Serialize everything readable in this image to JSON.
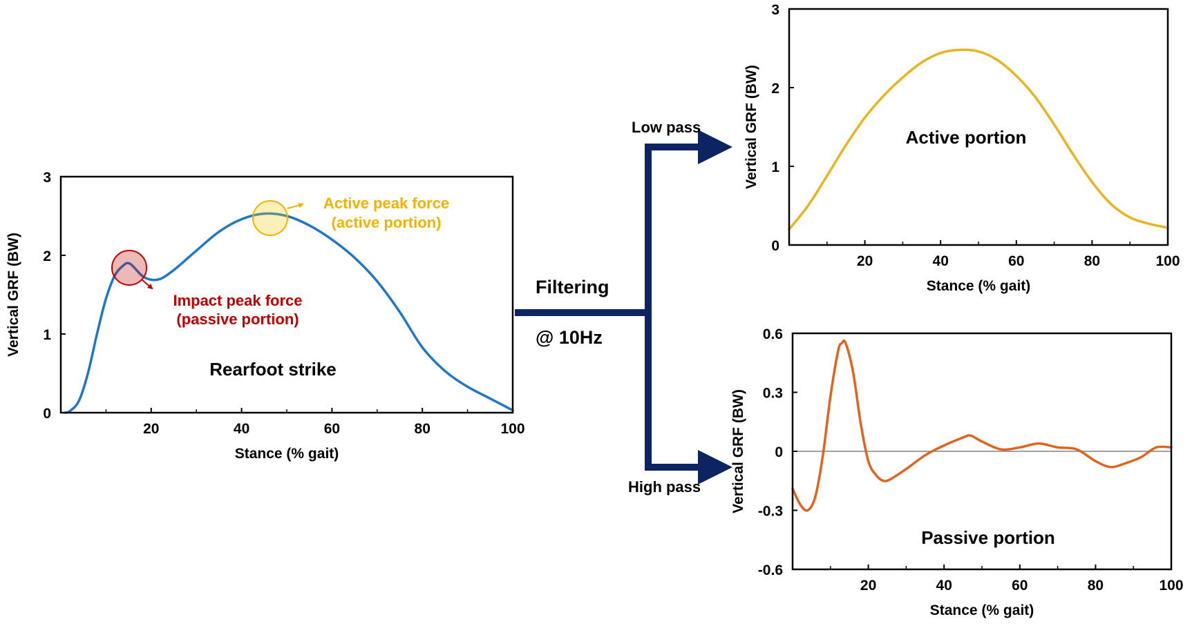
{
  "colors": {
    "raw_line": "#1f77c8",
    "active_line": "#e8b422",
    "passive_line": "#de6420",
    "arrows": "#0c2462",
    "impact_marker": "#c00000",
    "active_marker": "#f0b400",
    "zero_line": "#808080"
  },
  "flow": {
    "filtering_label": "Filtering",
    "frequency_label": "@ 10Hz",
    "low_pass_label": "Low pass",
    "high_pass_label": "High pass"
  },
  "annotations": {
    "active_peak_line1": "Active peak force",
    "active_peak_line2": "(active portion)",
    "impact_peak_line1": "Impact peak force",
    "impact_peak_line2": "(passive portion)"
  },
  "chart_data": [
    {
      "id": "raw",
      "type": "line",
      "title": "Rearfoot strike",
      "xlabel": "Stance (% gait)",
      "ylabel": "Vertical GRF (BW)",
      "xlim": [
        0,
        100
      ],
      "ylim": [
        0,
        3
      ],
      "xticks": [
        20,
        40,
        60,
        80,
        100
      ],
      "yticks": [
        0,
        1,
        2,
        3
      ],
      "grid": false,
      "series": [
        {
          "color": "#1f77c8",
          "x": [
            1,
            2,
            4,
            6,
            8,
            10,
            12,
            14,
            15,
            16,
            18,
            20,
            22,
            24,
            26,
            28,
            30,
            35,
            40,
            45,
            50,
            55,
            60,
            65,
            70,
            75,
            80,
            85,
            90,
            95,
            100
          ],
          "y": [
            0.0,
            0.02,
            0.15,
            0.5,
            1.0,
            1.45,
            1.75,
            1.88,
            1.9,
            1.86,
            1.74,
            1.69,
            1.7,
            1.77,
            1.86,
            1.96,
            2.06,
            2.3,
            2.46,
            2.53,
            2.5,
            2.38,
            2.2,
            1.97,
            1.67,
            1.28,
            0.83,
            0.53,
            0.33,
            0.18,
            0.03
          ]
        }
      ]
    },
    {
      "id": "active",
      "type": "line",
      "title": "Active portion",
      "xlabel": "Stance (% gait)",
      "ylabel": "Vertical GRF (BW)",
      "xlim": [
        0,
        100
      ],
      "ylim": [
        0,
        3
      ],
      "xticks": [
        20,
        40,
        60,
        80,
        100
      ],
      "yticks": [
        0,
        1,
        2,
        3
      ],
      "grid": false,
      "series": [
        {
          "color": "#e8b422",
          "x": [
            0,
            5,
            10,
            15,
            20,
            25,
            30,
            35,
            40,
            45,
            50,
            55,
            60,
            65,
            70,
            75,
            80,
            85,
            90,
            95,
            100
          ],
          "y": [
            0.2,
            0.5,
            0.88,
            1.27,
            1.62,
            1.9,
            2.13,
            2.32,
            2.44,
            2.48,
            2.46,
            2.35,
            2.15,
            1.88,
            1.53,
            1.15,
            0.8,
            0.52,
            0.35,
            0.27,
            0.22
          ]
        }
      ]
    },
    {
      "id": "passive",
      "type": "line",
      "title": "Passive portion",
      "xlabel": "Stance (% gait)",
      "ylabel": "Vertical GRF (BW)",
      "xlim": [
        0,
        100
      ],
      "ylim": [
        -0.6,
        0.6
      ],
      "xticks": [
        20,
        40,
        60,
        80,
        100
      ],
      "yticks": [
        -0.6,
        -0.3,
        0,
        0.3,
        0.6
      ],
      "grid": false,
      "series": [
        {
          "color": "#de6420",
          "x": [
            0,
            2,
            4,
            6,
            8,
            10,
            12,
            13,
            14,
            16,
            18,
            20,
            22,
            24,
            26,
            30,
            35,
            40,
            45,
            47,
            50,
            55,
            60,
            65,
            70,
            75,
            80,
            84,
            88,
            92,
            96,
            100
          ],
          "y": [
            -0.19,
            -0.27,
            -0.3,
            -0.23,
            -0.02,
            0.28,
            0.51,
            0.55,
            0.55,
            0.4,
            0.14,
            -0.05,
            -0.12,
            -0.15,
            -0.14,
            -0.09,
            -0.02,
            0.03,
            0.07,
            0.08,
            0.05,
            0.01,
            0.02,
            0.04,
            0.02,
            0.01,
            -0.05,
            -0.08,
            -0.06,
            -0.03,
            0.02,
            0.02
          ]
        }
      ]
    }
  ]
}
